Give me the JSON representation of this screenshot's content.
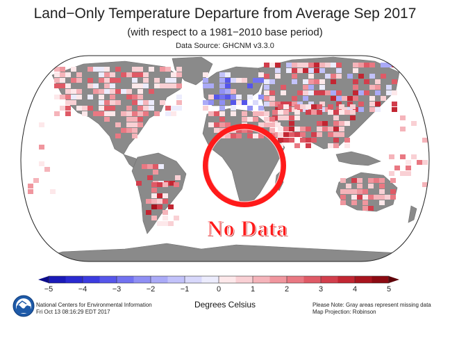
{
  "header": {
    "title": "Land−Only Temperature Departure from Average Sep 2017",
    "subtitle": "(with respect to a 1981−2010 base period)",
    "source": "Data Source: GHCNM v3.3.0"
  },
  "annotation": {
    "label": "No Data",
    "color": "#ff1a1a"
  },
  "colorbar": {
    "ticks": [
      "−5",
      "−4",
      "−3",
      "−2",
      "−1",
      "0",
      "1",
      "2",
      "3",
      "4",
      "5"
    ],
    "units": "Degrees Celsius",
    "colors": [
      "#1a1ab8",
      "#2a2ad0",
      "#3b3be0",
      "#5656ea",
      "#7272f0",
      "#8f8ff4",
      "#aaaaf7",
      "#c2c2fa",
      "#d8d8fb",
      "#ececfd",
      "#fde8ea",
      "#f9d0d4",
      "#f5b4ba",
      "#f0969e",
      "#e97882",
      "#df5a66",
      "#d23e4c",
      "#c22632",
      "#a8141e",
      "#8c0a12"
    ],
    "left_arrow_color": "#0c0c8a",
    "right_arrow_color": "#5e0008"
  },
  "colors": {
    "land_missing": "#8a8a8a",
    "ocean": "#ffffff"
  },
  "footer": {
    "org": "National Centers for Environmental Information",
    "timestamp": "Fri Oct 13 08:16:29 EDT 2017",
    "note": "Please Note: Gray areas represent missing data",
    "projection": "Map Projection: Robinson"
  },
  "logo": {
    "icon": "noaa-logo-icon"
  }
}
